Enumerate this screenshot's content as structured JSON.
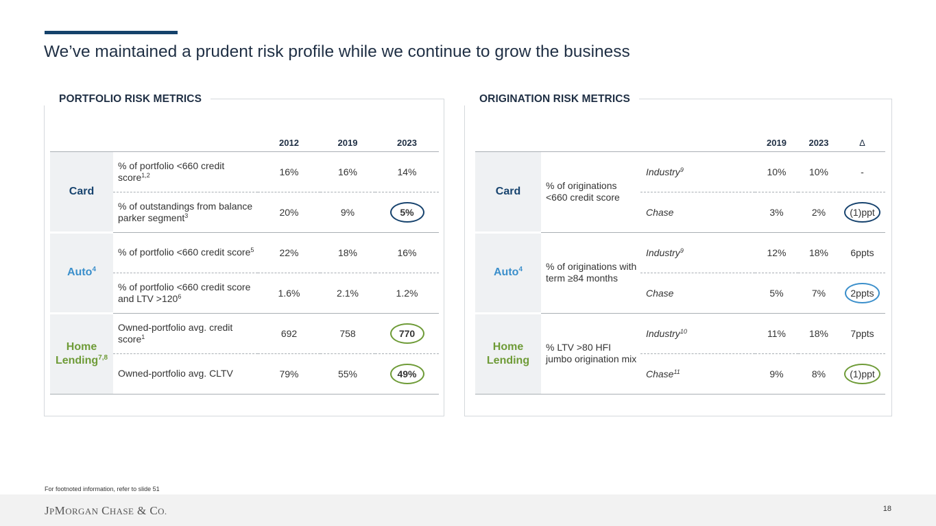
{
  "title": "We’ve maintained a prudent risk profile while we continue to grow the business",
  "portfolio": {
    "title": "PORTFOLIO RISK METRICS",
    "years": [
      "2012",
      "2019",
      "2023"
    ],
    "card": {
      "label": "Card"
    },
    "auto": {
      "label": "Auto",
      "sup": "4"
    },
    "home": {
      "label": "Home Lending",
      "sup": "7,8"
    },
    "rows": [
      {
        "metric": "% of portfolio <660 credit score",
        "sup": "1,2",
        "v2012": "16%",
        "v2019": "16%",
        "v2023": "14%"
      },
      {
        "metric": "% of outstandings from balance parker segment",
        "sup": "3",
        "v2012": "20%",
        "v2019": "9%",
        "v2023": "5%"
      },
      {
        "metric": "% of portfolio <660 credit score",
        "sup": "5",
        "v2012": "22%",
        "v2019": "18%",
        "v2023": "16%"
      },
      {
        "metric": "% of portfolio <660 credit score and LTV >120",
        "sup": "6",
        "v2012": "1.6%",
        "v2019": "2.1%",
        "v2023": "1.2%"
      },
      {
        "metric": "Owned-portfolio avg. credit score",
        "sup": "1",
        "v2012": "692",
        "v2019": "758",
        "v2023": "770"
      },
      {
        "metric": "Owned-portfolio avg. CLTV",
        "sup": "",
        "v2012": "79%",
        "v2019": "55%",
        "v2023": "49%"
      }
    ]
  },
  "origination": {
    "title": "ORIGINATION RISK METRICS",
    "years": [
      "2019",
      "2023"
    ],
    "delta_header": "∆",
    "card": {
      "label": "Card",
      "metric": "% of originations <660 credit score"
    },
    "auto": {
      "label": "Auto",
      "sup": "4",
      "metric": "% of originations with term ≥84 months"
    },
    "home": {
      "label": "Home Lending",
      "metric": "% LTV >80 HFI jumbo origination mix"
    },
    "rows": [
      {
        "name": "Industry",
        "sup": "9",
        "v2019": "10%",
        "v2023": "10%",
        "delta": "-"
      },
      {
        "name": "Chase",
        "sup": "",
        "v2019": "3%",
        "v2023": "2%",
        "delta": "(1)ppt"
      },
      {
        "name": "Industry",
        "sup": "9",
        "v2019": "12%",
        "v2023": "18%",
        "delta": "6ppts"
      },
      {
        "name": "Chase",
        "sup": "",
        "v2019": "5%",
        "v2023": "7%",
        "delta": "2ppts"
      },
      {
        "name": "Industry",
        "sup": "10",
        "v2019": "11%",
        "v2023": "18%",
        "delta": "7ppts"
      },
      {
        "name": "Chase",
        "sup": "11",
        "v2019": "9%",
        "v2023": "8%",
        "delta": "(1)ppt"
      }
    ]
  },
  "colors": {
    "navy": "#17436e",
    "blue": "#3b8fcb",
    "green": "#6e9b37",
    "accent_bar": "#15426b"
  },
  "footnote": "For footnoted information, refer to slide 51",
  "footer": {
    "logo": "JPMORGAN CHASE & CO.",
    "page": "18"
  }
}
